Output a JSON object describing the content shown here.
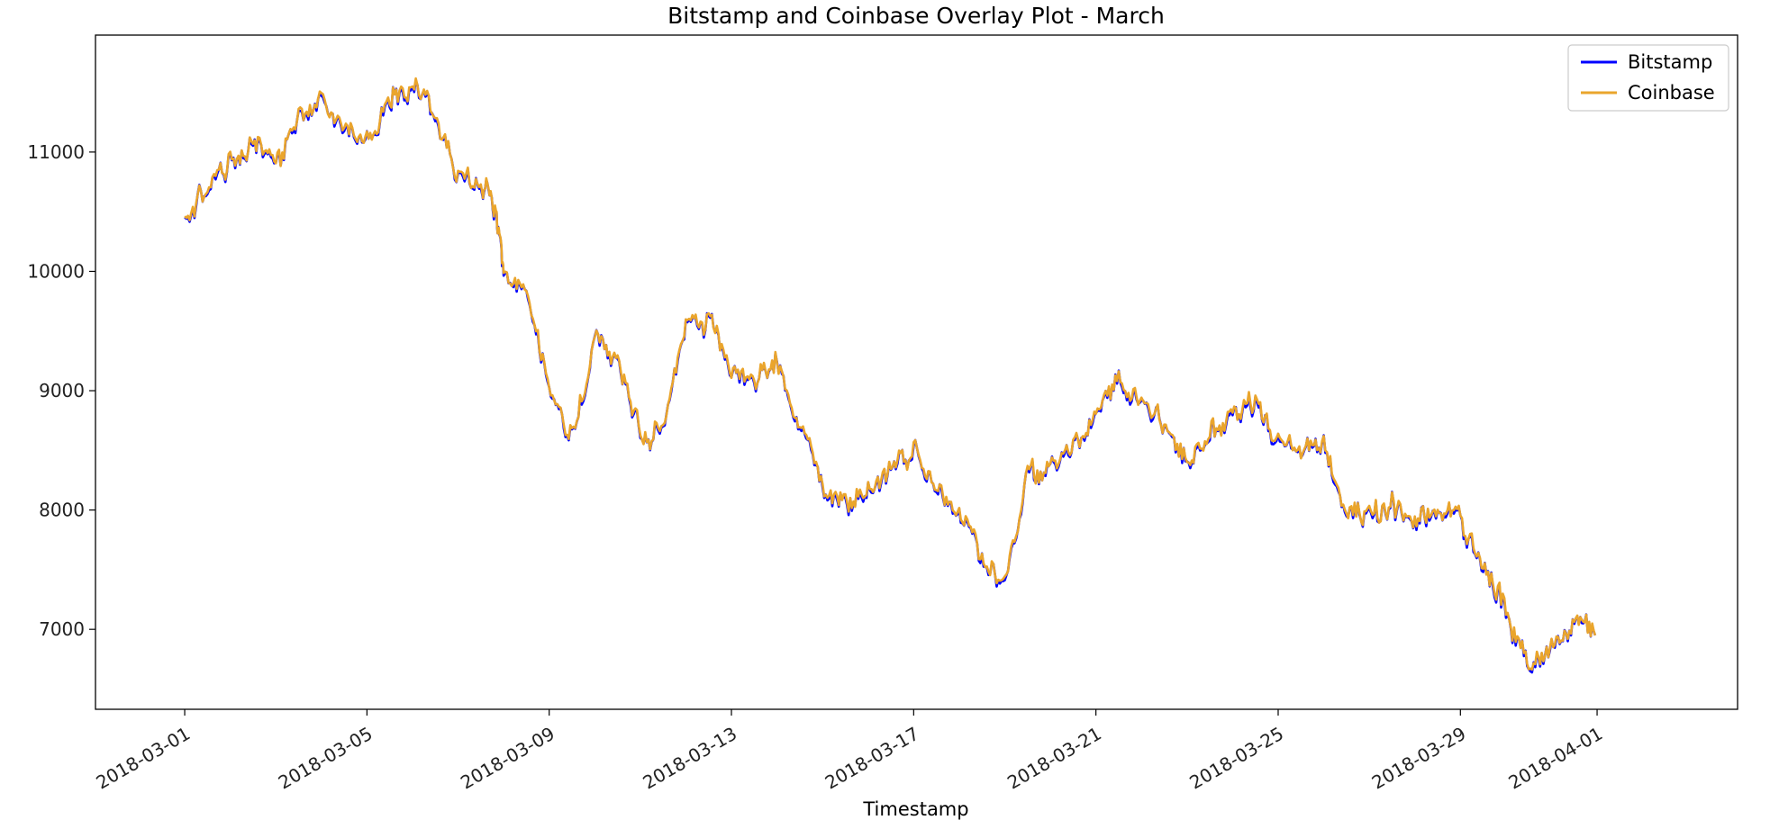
{
  "chart_data": {
    "type": "line",
    "title": "Bitstamp and Coinbase Overlay Plot - March",
    "xlabel": "Timestamp",
    "ylabel": "",
    "x_range": [
      "2018-02-27T01:00",
      "2018-04-04T02:00"
    ],
    "ylim": [
      6330,
      11980
    ],
    "x_ticks": [
      "2018-03-01",
      "2018-03-05",
      "2018-03-09",
      "2018-03-13",
      "2018-03-17",
      "2018-03-21",
      "2018-03-25",
      "2018-03-29",
      "2018-04-01"
    ],
    "y_ticks": [
      7000,
      8000,
      9000,
      10000,
      11000
    ],
    "grid": false,
    "legend": {
      "position": "top-right"
    },
    "series": [
      {
        "name": "Bitstamp",
        "color": "#0000ff"
      },
      {
        "name": "Coinbase",
        "color": "#eaa52c"
      }
    ],
    "x": [
      "2018-03-01T00:00",
      "2018-03-01T12:00",
      "2018-03-02T00:00",
      "2018-03-02T12:00",
      "2018-03-03T00:00",
      "2018-03-03T12:00",
      "2018-03-04T00:00",
      "2018-03-04T12:00",
      "2018-03-05T00:00",
      "2018-03-05T12:00",
      "2018-03-06T00:00",
      "2018-03-06T12:00",
      "2018-03-07T00:00",
      "2018-03-07T12:00",
      "2018-03-07T20:00",
      "2018-03-08T00:00",
      "2018-03-08T12:00",
      "2018-03-09T00:00",
      "2018-03-09T12:00",
      "2018-03-10T00:00",
      "2018-03-10T12:00",
      "2018-03-11T00:00",
      "2018-03-11T12:00",
      "2018-03-12T00:00",
      "2018-03-12T12:00",
      "2018-03-13T00:00",
      "2018-03-13T12:00",
      "2018-03-14T00:00",
      "2018-03-14T12:00",
      "2018-03-15T00:00",
      "2018-03-15T12:00",
      "2018-03-16T00:00",
      "2018-03-16T12:00",
      "2018-03-17T00:00",
      "2018-03-17T12:00",
      "2018-03-18T00:00",
      "2018-03-18T12:00",
      "2018-03-19T00:00",
      "2018-03-19T12:00",
      "2018-03-20T00:00",
      "2018-03-20T12:00",
      "2018-03-21T00:00",
      "2018-03-21T12:00",
      "2018-03-22T00:00",
      "2018-03-22T12:00",
      "2018-03-23T00:00",
      "2018-03-23T12:00",
      "2018-03-24T00:00",
      "2018-03-24T12:00",
      "2018-03-25T00:00",
      "2018-03-25T12:00",
      "2018-03-26T00:00",
      "2018-03-26T12:00",
      "2018-03-27T00:00",
      "2018-03-27T12:00",
      "2018-03-28T00:00",
      "2018-03-28T12:00",
      "2018-03-29T00:00",
      "2018-03-29T12:00",
      "2018-03-30T00:00",
      "2018-03-30T12:00",
      "2018-03-31T00:00",
      "2018-03-31T12:00",
      "2018-03-31T23:00"
    ],
    "values": [
      10400,
      10720,
      10880,
      11080,
      10850,
      11350,
      11450,
      11200,
      11100,
      11500,
      11600,
      11300,
      10800,
      10700,
      10550,
      9900,
      9850,
      9000,
      8600,
      9400,
      9300,
      8600,
      8700,
      9600,
      9550,
      9200,
      9100,
      9250,
      8700,
      8200,
      8000,
      8200,
      8300,
      8500,
      8200,
      8000,
      7600,
      7400,
      8300,
      8350,
      8550,
      8800,
      9050,
      8950,
      8700,
      8400,
      8600,
      8850,
      8900,
      8550,
      8500,
      8600,
      8000,
      7900,
      8050,
      7850,
      8000,
      7950,
      7500,
      7200,
      6700,
      6900,
      7100,
      6950
    ]
  }
}
